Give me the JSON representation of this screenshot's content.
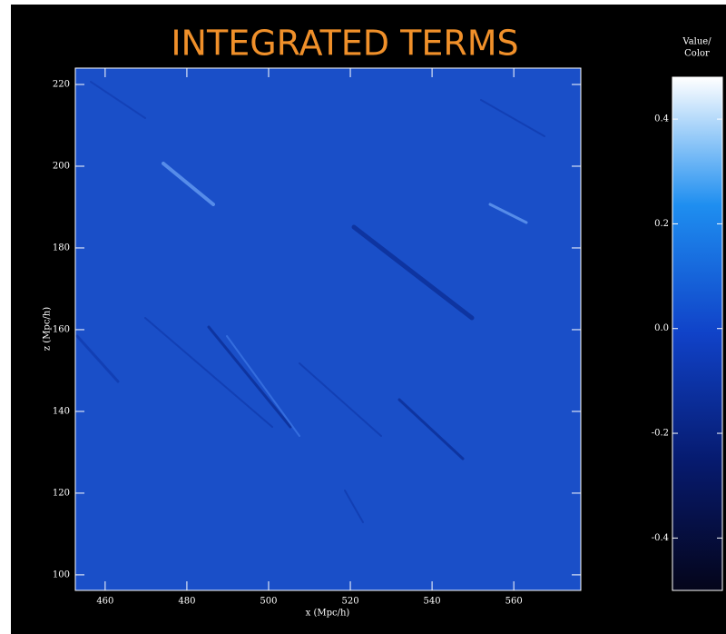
{
  "chart_data": {
    "type": "image",
    "title": "INTEGRATED TERMS",
    "x_label": "x (Mpc/h)",
    "y_label": "z (Mpc/h)",
    "xlim": [
      452.7,
      576.4
    ],
    "xticks": [
      460,
      480,
      500,
      520,
      540,
      560
    ],
    "ylim": [
      96.2,
      224
    ],
    "yticks": [
      100,
      120,
      140,
      160,
      180,
      200,
      220
    ],
    "color": "#1a4fc8",
    "colorbar": {
      "label": [
        "Value/",
        "Color"
      ],
      "lim": [
        -0.5,
        0.48
      ],
      "ticks": [
        0.4,
        0.2,
        {
          "value": 0,
          "label": "0.0"
        },
        -0.2,
        -0.4
      ],
      "colors": [
        "#05051a",
        "#061a6e",
        "#1042c8",
        "#1e8ef0",
        "#ffffff"
      ]
    }
  }
}
